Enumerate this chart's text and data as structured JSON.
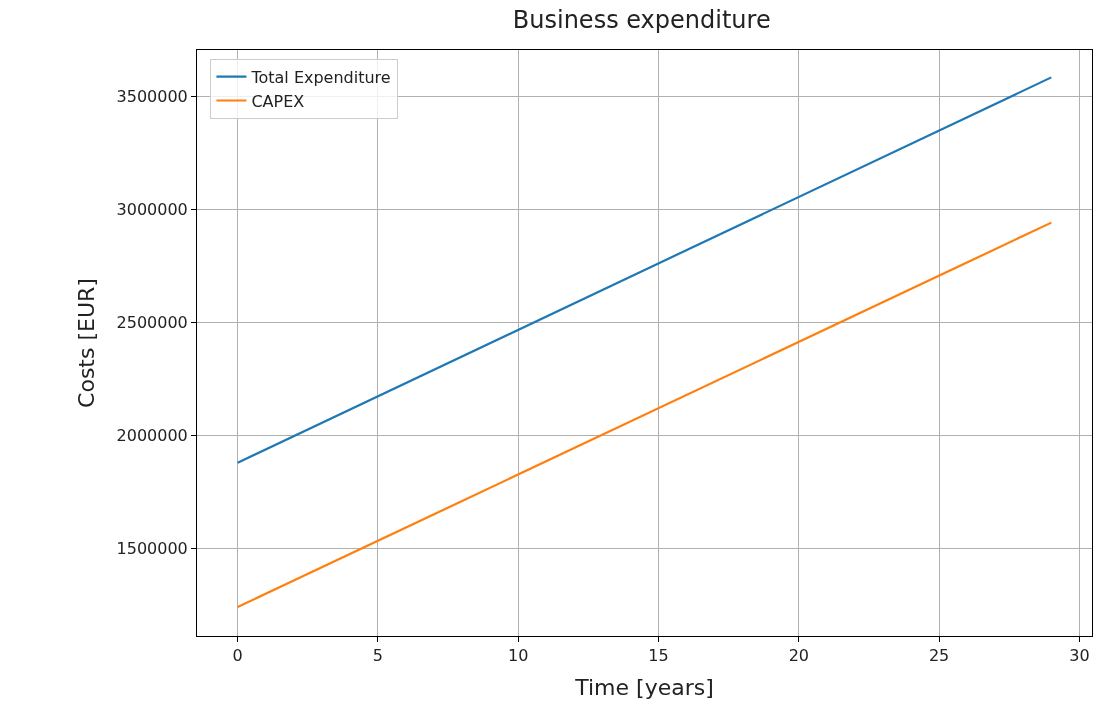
{
  "chart_data": {
    "type": "line",
    "title": "Business expenditure",
    "xlabel": "Time [years]",
    "ylabel": "Costs [EUR]",
    "series": [
      {
        "name": "Total Expenditure",
        "color": "#1f77b4",
        "values": [
          1881000,
          3584000
        ]
      },
      {
        "name": "CAPEX",
        "color": "#ff7f0e",
        "values": [
          1243000,
          2942000
        ]
      }
    ],
    "x": [
      0,
      29
    ],
    "xlim": [
      -1.45,
      30.45
    ],
    "xticks": [
      0,
      5,
      10,
      15,
      20,
      25,
      30
    ],
    "ylim": [
      1115000,
      3705000
    ],
    "yticks": [
      1500000,
      2000000,
      2500000,
      3000000,
      3500000
    ],
    "grid": true,
    "legend": "top left",
    "line_style": "solid",
    "marker": "none"
  }
}
